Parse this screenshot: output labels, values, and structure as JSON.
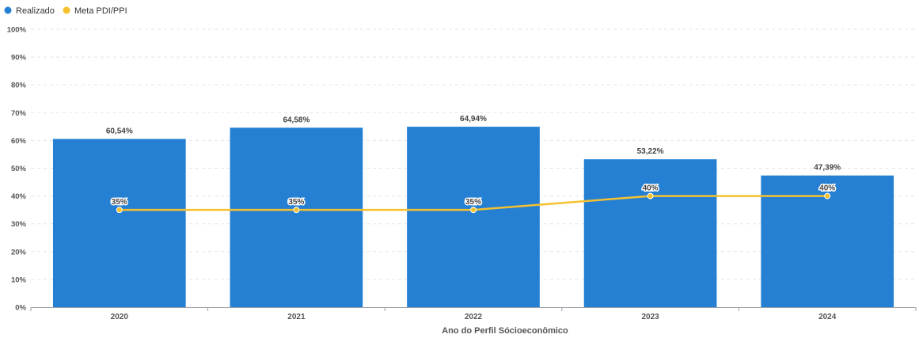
{
  "chart_data": {
    "type": "bar",
    "title": "",
    "xlabel": "Ano do Perfil Sócioeconômico",
    "ylabel": "",
    "categories": [
      "2020",
      "2021",
      "2022",
      "2023",
      "2024"
    ],
    "y_ticks": [
      "0%",
      "10%",
      "20%",
      "30%",
      "40%",
      "50%",
      "60%",
      "70%",
      "80%",
      "90%",
      "100%"
    ],
    "ylim": [
      0,
      100
    ],
    "grid": true,
    "legend_position": "top-left",
    "series": [
      {
        "name": "Realizado",
        "type": "bar",
        "color": "#2580d4",
        "values": [
          60.54,
          64.58,
          64.94,
          53.22,
          47.39
        ],
        "labels": [
          "60,54%",
          "64,58%",
          "64,94%",
          "53,22%",
          "47,39%"
        ]
      },
      {
        "name": "Meta PDI/PPI",
        "type": "line",
        "color": "#f5c12e",
        "values": [
          35,
          35,
          35,
          40,
          40
        ],
        "labels": [
          "35%",
          "35%",
          "35%",
          "40%",
          "40%"
        ]
      }
    ]
  }
}
